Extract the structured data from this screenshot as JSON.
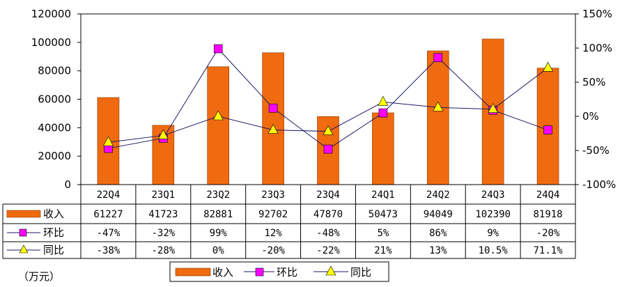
{
  "chart_data": {
    "type": "bar+line",
    "categories": [
      "22Q4",
      "23Q1",
      "23Q2",
      "23Q3",
      "23Q4",
      "24Q1",
      "24Q2",
      "24Q3",
      "24Q4"
    ],
    "series": [
      {
        "name": "收入",
        "type": "bar",
        "axis": "left",
        "values": [
          61227,
          41723,
          82881,
          92702,
          47870,
          50473,
          94049,
          102390,
          81918
        ],
        "color": "#f06a10"
      },
      {
        "name": "环比",
        "type": "line",
        "axis": "right",
        "values": [
          -47,
          -32,
          99,
          12,
          -48,
          5,
          86,
          9,
          -20
        ],
        "labels": [
          "-47%",
          "-32%",
          "99%",
          "12%",
          "-48%",
          "5%",
          "86%",
          "9%",
          "-20%"
        ],
        "color": "#ff00ff",
        "marker": "square"
      },
      {
        "name": "同比",
        "type": "line",
        "axis": "right",
        "values": [
          -38,
          -28,
          0,
          -20,
          -22,
          21,
          13,
          10.5,
          71.1
        ],
        "labels": [
          "-38%",
          "-28%",
          "0%",
          "-20%",
          "-22%",
          "21%",
          "13%",
          "10.5%",
          "71.1%"
        ],
        "color": "#ffff00",
        "marker": "triangle"
      }
    ],
    "left_axis": {
      "ticks": [
        "0",
        "20000",
        "40000",
        "60000",
        "80000",
        "100000",
        "120000"
      ],
      "ylim": [
        0,
        120000
      ]
    },
    "right_axis": {
      "ticks": [
        "-100%",
        "-50%",
        "0%",
        "50%",
        "100%",
        "150%"
      ],
      "ylim": [
        -100,
        150
      ]
    },
    "unit_label": "（万元）",
    "data_table": true,
    "legend": {
      "position": "bottom",
      "items": [
        "收入",
        "环比",
        "同比"
      ]
    }
  }
}
